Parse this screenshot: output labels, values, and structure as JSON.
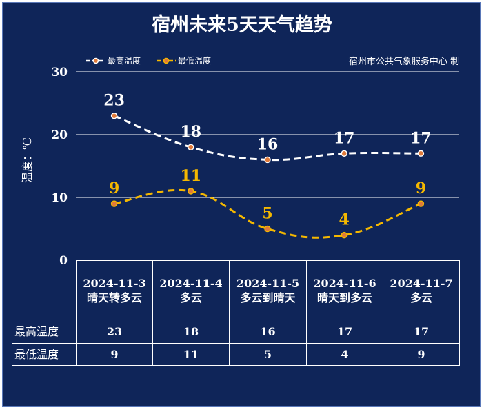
{
  "title": "宿州未来5天天气趋势",
  "producer": "宿州市公共气象服务中心 制",
  "colors": {
    "background": "#0f2559",
    "high": "#ffffff",
    "low": "#f5b800",
    "marker_fill": "#e07a3a"
  },
  "chart_data": {
    "type": "line",
    "ylabel": "温度：℃",
    "ylim": [
      0,
      30
    ],
    "yticks": [
      "0",
      "10",
      "20",
      "30"
    ],
    "grid": true,
    "legend_position": "top-left",
    "categories": [
      {
        "date": "2024-11-3",
        "weather": "晴天转多云"
      },
      {
        "date": "2024-11-4",
        "weather": "多云"
      },
      {
        "date": "2024-11-5",
        "weather": "多云到晴天"
      },
      {
        "date": "2024-11-6",
        "weather": "晴天到多云"
      },
      {
        "date": "2024-11-7",
        "weather": "多云"
      }
    ],
    "series": [
      {
        "name": "最高温度",
        "values": [
          23,
          18,
          16,
          17,
          17
        ],
        "color": "#ffffff"
      },
      {
        "name": "最低温度",
        "values": [
          9,
          11,
          5,
          4,
          9
        ],
        "color": "#f5b800"
      }
    ]
  },
  "table": {
    "row_high_label": "最高温度",
    "row_low_label": "最低温度"
  }
}
